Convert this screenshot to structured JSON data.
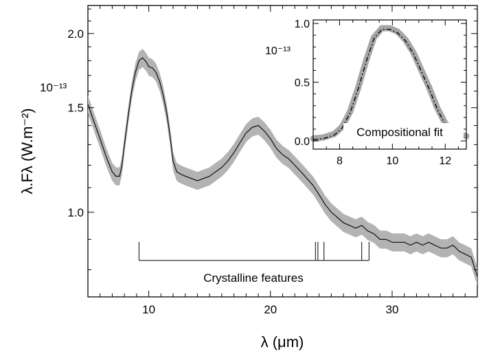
{
  "chart_data": [
    {
      "type": "line",
      "xlabel": "λ (μm)",
      "ylabel": "λ.Fλ (W.m⁻²)",
      "y_multiplier": "10⁻¹³",
      "xlim": [
        5,
        37
      ],
      "ylim": [
        0.72,
        2.23
      ],
      "y_scale": "log",
      "x_ticks": [
        10,
        20,
        30
      ],
      "y_ticks": [
        1.0,
        1.5,
        2.0
      ],
      "x_tick_labels": [
        "10",
        "20",
        "30"
      ],
      "y_tick_labels": [
        "1.0",
        "1.5",
        "2.0"
      ],
      "grid": false,
      "legend": "none",
      "series_color": "#000000",
      "error_band_color": "#b3b3b3",
      "annotation": "Crystalline features",
      "crystalline_features": [
        9.2,
        23.7,
        23.9,
        24.4,
        27.5,
        28.1
      ],
      "series": [
        {
          "x": [
            5.0,
            5.5,
            6.0,
            6.5,
            7.0,
            7.3,
            7.6,
            7.8,
            8.0,
            8.3,
            8.6,
            8.9,
            9.2,
            9.5,
            9.8,
            10.0,
            10.3,
            10.6,
            10.9,
            11.2,
            11.5,
            11.8,
            12.0,
            12.3,
            12.6,
            13.0,
            13.5,
            14.0,
            14.5,
            15.0,
            15.5,
            16.0,
            16.5,
            17.0,
            17.5,
            18.0,
            18.5,
            19.0,
            19.5,
            20.0,
            20.5,
            21.0,
            21.5,
            22.0,
            22.5,
            23.0,
            23.5,
            24.0,
            24.5,
            25.0,
            25.5,
            26.0,
            26.5,
            27.0,
            27.5,
            28.0,
            28.5,
            29.0,
            29.5,
            30.0,
            30.5,
            31.0,
            31.5,
            32.0,
            32.5,
            33.0,
            33.5,
            34.0,
            34.5,
            35.0,
            35.5,
            36.0,
            36.5,
            37.0
          ],
          "y": [
            1.52,
            1.42,
            1.33,
            1.24,
            1.17,
            1.15,
            1.15,
            1.2,
            1.3,
            1.45,
            1.6,
            1.72,
            1.8,
            1.82,
            1.79,
            1.76,
            1.75,
            1.72,
            1.66,
            1.57,
            1.46,
            1.32,
            1.22,
            1.17,
            1.16,
            1.15,
            1.14,
            1.13,
            1.14,
            1.15,
            1.17,
            1.19,
            1.22,
            1.26,
            1.31,
            1.36,
            1.39,
            1.4,
            1.37,
            1.33,
            1.28,
            1.25,
            1.23,
            1.2,
            1.17,
            1.14,
            1.11,
            1.07,
            1.03,
            1.0,
            0.98,
            0.96,
            0.95,
            0.94,
            0.95,
            0.93,
            0.92,
            0.9,
            0.9,
            0.89,
            0.89,
            0.89,
            0.88,
            0.89,
            0.88,
            0.89,
            0.88,
            0.87,
            0.87,
            0.88,
            0.86,
            0.85,
            0.84,
            0.78
          ]
        }
      ]
    },
    {
      "type": "line",
      "title": "Compositional fit",
      "xlim": [
        7,
        12.8
      ],
      "ylim": [
        -0.07,
        1.03
      ],
      "y_multiplier": "10⁻¹³",
      "x_ticks": [
        8,
        10,
        12
      ],
      "y_ticks": [
        0.0,
        0.5,
        1.0
      ],
      "x_tick_labels": [
        "8",
        "10",
        "12"
      ],
      "y_tick_labels": [
        "0.0",
        "0.5",
        "1.0"
      ],
      "grid": false,
      "legend": "none",
      "series": [
        {
          "style": "observed",
          "color": "#a6a6a6",
          "x": [
            7.0,
            7.4,
            7.8,
            8.1,
            8.4,
            8.7,
            9.0,
            9.3,
            9.6,
            9.9,
            10.2,
            10.5,
            10.8,
            11.1,
            11.4,
            11.7,
            12.0,
            12.3,
            12.6,
            12.8
          ],
          "y": [
            0.02,
            0.03,
            0.06,
            0.12,
            0.25,
            0.45,
            0.68,
            0.88,
            0.96,
            0.96,
            0.93,
            0.86,
            0.75,
            0.6,
            0.45,
            0.28,
            0.15,
            0.08,
            0.05,
            0.04
          ]
        },
        {
          "style": "fit",
          "color": "#000000",
          "x": [
            7.0,
            7.4,
            7.8,
            8.1,
            8.4,
            8.7,
            9.0,
            9.3,
            9.6,
            9.9,
            10.2,
            10.5,
            10.8,
            11.1,
            11.4,
            11.7,
            12.0,
            12.3,
            12.6,
            12.8
          ],
          "y": [
            0.01,
            0.02,
            0.05,
            0.11,
            0.24,
            0.44,
            0.67,
            0.87,
            0.95,
            0.95,
            0.92,
            0.85,
            0.74,
            0.59,
            0.44,
            0.27,
            0.14,
            0.07,
            0.04,
            0.03
          ]
        }
      ]
    }
  ]
}
